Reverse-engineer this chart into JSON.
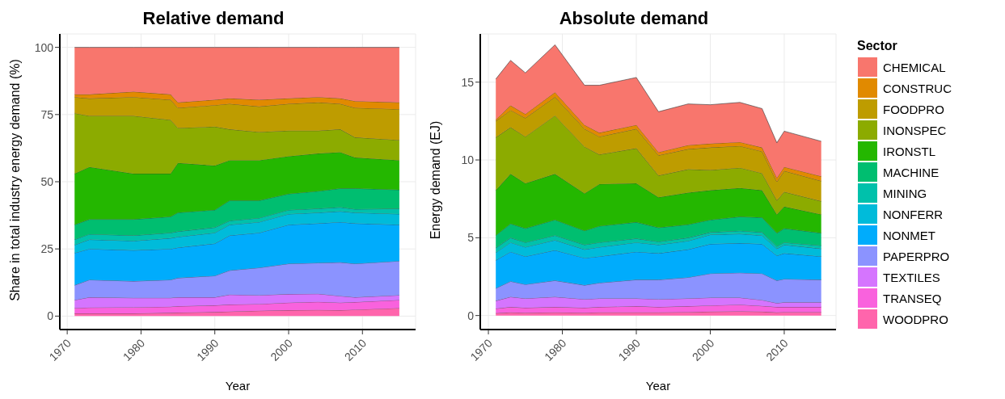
{
  "chart_data": [
    {
      "type": "area",
      "stacked": true,
      "title": "Relative demand",
      "xlabel": "Year",
      "ylabel": "Share in total industry energy demand (%)",
      "x": [
        1971,
        1973,
        1979,
        1984,
        1985,
        1990,
        1992,
        1996,
        2000,
        2004,
        2007,
        2009,
        2015
      ],
      "xlim": [
        1969,
        2017.2
      ],
      "xticks": [
        1970,
        1980,
        1990,
        2000,
        2010
      ],
      "ylim": [
        -5,
        105
      ],
      "yticks": [
        0,
        25,
        50,
        75,
        100
      ],
      "grid": true,
      "legend": false,
      "series": [
        {
          "color": "#FF65AC",
          "values": [
            1,
            1,
            1,
            1.2,
            1.3,
            1.5,
            1.7,
            2,
            2.2,
            2.3,
            2.2,
            2.4,
            3
          ]
        },
        {
          "color": "#F962DD",
          "values": [
            2,
            2.2,
            2.3,
            2.3,
            2.4,
            2.5,
            2.6,
            2.5,
            2.8,
            3,
            2.8,
            2.8,
            3
          ]
        },
        {
          "color": "#D575FE",
          "values": [
            3,
            3.8,
            3.5,
            3.3,
            3.3,
            3,
            3.7,
            3.3,
            3.2,
            3,
            2.5,
            1.8,
            1.8
          ]
        },
        {
          "color": "#8B93FF",
          "values": [
            5.5,
            6.5,
            6.2,
            6.7,
            7.2,
            8,
            9,
            10.2,
            11.3,
            11.5,
            12.5,
            12.5,
            12.7
          ]
        },
        {
          "color": "#00ACFC",
          "values": [
            12,
            11.5,
            11.5,
            11.5,
            11.3,
            12,
            13,
            13,
            14.5,
            14.7,
            15,
            15,
            13.5
          ]
        },
        {
          "color": "#00BBDA",
          "values": [
            3,
            3.5,
            3.5,
            4,
            4,
            4,
            4,
            4,
            4,
            4,
            4,
            4,
            4
          ]
        },
        {
          "color": "#00C1AB",
          "values": [
            2,
            2,
            2,
            2,
            2,
            2,
            1.5,
            1.5,
            1.5,
            1.5,
            1.5,
            1.3,
            2
          ]
        },
        {
          "color": "#00BE70",
          "values": [
            5.5,
            5.5,
            6,
            6,
            7,
            6.5,
            7.5,
            6.5,
            6,
            6.5,
            7,
            7.7,
            7
          ]
        },
        {
          "color": "#24B700",
          "values": [
            19,
            19.5,
            17,
            16,
            18.5,
            16.5,
            15,
            15,
            14,
            14,
            13.5,
            11.5,
            11
          ]
        },
        {
          "color": "#8CAB00",
          "values": [
            22.5,
            19,
            21.5,
            20,
            13,
            14.5,
            11.5,
            10.5,
            9.5,
            8.5,
            8.5,
            7.5,
            7.5
          ]
        },
        {
          "color": "#BE9C00",
          "values": [
            6,
            6.5,
            7,
            7.5,
            7.5,
            8,
            9.5,
            9.5,
            10,
            10.5,
            9.5,
            11,
            11.5
          ]
        },
        {
          "color": "#E18A00",
          "values": [
            1,
            1.5,
            2,
            2,
            2,
            2,
            2,
            2.5,
            2,
            2,
            2,
            2.5,
            2.5
          ]
        },
        {
          "color": "#F8766D",
          "values": [
            17.5,
            17.5,
            16.5,
            17.5,
            20.5,
            19.5,
            19,
            19.5,
            19,
            18.5,
            19,
            20,
            20.5
          ]
        }
      ]
    },
    {
      "type": "area",
      "stacked": true,
      "title": "Absolute demand",
      "xlabel": "Year",
      "ylabel": "Energy demand (EJ)",
      "legend_title": "Sector",
      "x": [
        1971,
        1973,
        1975,
        1979,
        1983,
        1985,
        1990,
        1993,
        1997,
        2000,
        2004,
        2007,
        2009,
        2010,
        2015
      ],
      "xlim": [
        1968.9,
        2017
      ],
      "xticks": [
        1970,
        1980,
        1990,
        2000,
        2010
      ],
      "ylim": [
        -0.9,
        18.1
      ],
      "yticks": [
        0,
        5,
        10,
        15
      ],
      "grid": true,
      "legend": "right",
      "series": [
        {
          "name": "WOODPRO",
          "color": "#FF65AC",
          "values": [
            0.15,
            0.2,
            0.18,
            0.2,
            0.18,
            0.2,
            0.2,
            0.2,
            0.22,
            0.25,
            0.27,
            0.25,
            0.2,
            0.22,
            0.22
          ]
        },
        {
          "name": "TRANSEQ",
          "color": "#F962DD",
          "values": [
            0.3,
            0.35,
            0.32,
            0.35,
            0.32,
            0.35,
            0.4,
            0.35,
            0.38,
            0.4,
            0.43,
            0.37,
            0.35,
            0.33,
            0.33
          ]
        },
        {
          "name": "TEXTILES",
          "color": "#D575FE",
          "values": [
            0.5,
            0.65,
            0.6,
            0.65,
            0.55,
            0.55,
            0.5,
            0.5,
            0.5,
            0.5,
            0.45,
            0.38,
            0.25,
            0.3,
            0.3
          ]
        },
        {
          "name": "PAPERPRO",
          "color": "#8B93FF",
          "values": [
            0.8,
            1.0,
            0.9,
            1.05,
            0.9,
            1.0,
            1.2,
            1.25,
            1.35,
            1.55,
            1.6,
            1.7,
            1.45,
            1.5,
            1.45
          ]
        },
        {
          "name": "NONMET",
          "color": "#00ACFC",
          "values": [
            1.8,
            1.9,
            1.8,
            1.95,
            1.75,
            1.7,
            1.8,
            1.7,
            1.8,
            1.9,
            1.9,
            1.9,
            1.6,
            1.65,
            1.5
          ]
        },
        {
          "name": "NONFERR",
          "color": "#00BBDA",
          "values": [
            0.5,
            0.6,
            0.6,
            0.65,
            0.55,
            0.6,
            0.6,
            0.55,
            0.55,
            0.6,
            0.6,
            0.55,
            0.45,
            0.55,
            0.5
          ]
        },
        {
          "name": "MINING",
          "color": "#00C1AB",
          "values": [
            0.3,
            0.3,
            0.3,
            0.3,
            0.3,
            0.3,
            0.25,
            0.2,
            0.2,
            0.15,
            0.2,
            0.2,
            0.15,
            0.15,
            0.2
          ]
        },
        {
          "name": "MACHINE",
          "color": "#00BE70",
          "values": [
            0.8,
            0.9,
            0.9,
            1.0,
            0.9,
            1.05,
            1.05,
            0.9,
            0.85,
            0.8,
            0.9,
            0.95,
            0.85,
            0.9,
            0.8
          ]
        },
        {
          "name": "IRONSTL",
          "color": "#24B700",
          "values": [
            2.9,
            3.2,
            2.9,
            2.95,
            2.4,
            2.7,
            2.5,
            1.95,
            2.05,
            1.9,
            1.85,
            1.75,
            1.2,
            1.4,
            1.2
          ]
        },
        {
          "name": "INONSPEC",
          "color": "#8CAB00",
          "values": [
            3.4,
            3.0,
            3.0,
            3.75,
            3.0,
            1.9,
            2.25,
            1.4,
            1.5,
            1.3,
            1.3,
            1.1,
            0.9,
            0.95,
            0.85
          ]
        },
        {
          "name": "FOODPRO",
          "color": "#BE9C00",
          "values": [
            1.05,
            1.1,
            1.2,
            1.2,
            1.15,
            1.15,
            1.25,
            1.3,
            1.3,
            1.45,
            1.4,
            1.4,
            1.2,
            1.35,
            1.3
          ]
        },
        {
          "name": "CONSTRUC",
          "color": "#E18A00",
          "values": [
            0.1,
            0.3,
            0.25,
            0.3,
            0.25,
            0.25,
            0.25,
            0.2,
            0.25,
            0.25,
            0.25,
            0.25,
            0.25,
            0.25,
            0.3
          ]
        },
        {
          "name": "CHEMICAL",
          "color": "#F8766D",
          "values": [
            2.6,
            2.9,
            2.65,
            3.05,
            2.55,
            3.05,
            3.05,
            2.6,
            2.65,
            2.5,
            2.55,
            2.5,
            2.25,
            2.3,
            2.25
          ]
        }
      ]
    }
  ]
}
